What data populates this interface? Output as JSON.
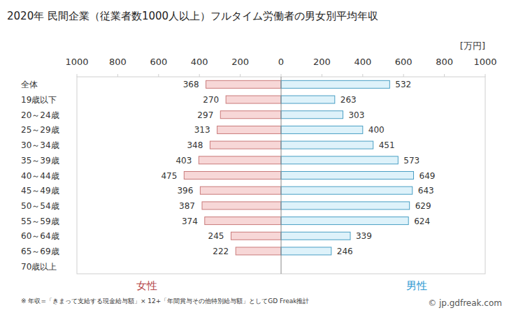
{
  "chart_data": {
    "type": "butterfly",
    "orientation": "horizontal",
    "title": "2020年 民間企業（従業者数1000人以上）フルタイム労働者の男女別平均年収",
    "unit": "[万円]",
    "footnote": "※ 年収=「きまって支給する現金給与額」× 12+「年間賞与その他特別給与額」としてGD Freak推計",
    "source": "© jp.gdfreak.com",
    "categories": [
      "全体",
      "19歳以下",
      "20～24歳",
      "25～29歳",
      "30～34歳",
      "35～39歳",
      "40～44歳",
      "45～49歳",
      "50～54歳",
      "55～59歳",
      "60～64歳",
      "65～69歳",
      "70歳以上"
    ],
    "series": [
      {
        "name": "女性",
        "color": "#f7d7d7",
        "values": [
          368,
          270,
          297,
          313,
          348,
          403,
          475,
          396,
          387,
          374,
          245,
          222,
          null
        ]
      },
      {
        "name": "男性",
        "color": "#def2fa",
        "values": [
          532,
          263,
          303,
          400,
          451,
          573,
          649,
          643,
          629,
          624,
          339,
          246,
          null
        ]
      }
    ],
    "xlim": [
      0,
      1000
    ],
    "xticks": [
      0,
      200,
      400,
      600,
      800,
      1000
    ],
    "data_labels": true,
    "grid": false
  }
}
